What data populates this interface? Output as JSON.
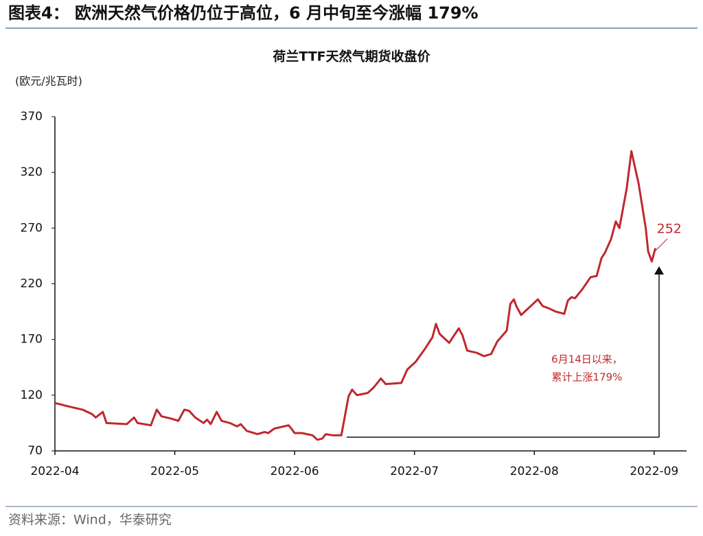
{
  "header": {
    "title": "图表4： 欧洲天然气价格仍位于高位，6 月中旬至今涨幅 179%"
  },
  "chart_data": {
    "type": "line",
    "title": "荷兰TTF天然气期货收盘价",
    "y_label": "(欧元/兆瓦时)",
    "color": "#c0272d",
    "x": [
      4.0,
      4.11,
      4.23,
      4.31,
      4.34,
      4.4,
      4.43,
      4.6,
      4.66,
      4.69,
      4.8,
      4.85,
      4.89,
      4.97,
      5.03,
      5.08,
      5.12,
      5.17,
      5.24,
      5.27,
      5.3,
      5.35,
      5.39,
      5.46,
      5.52,
      5.55,
      5.6,
      5.69,
      5.75,
      5.78,
      5.83,
      5.95,
      5.98,
      6.0,
      6.06,
      6.15,
      6.19,
      6.23,
      6.26,
      6.32,
      6.39,
      6.45,
      6.48,
      6.52,
      6.61,
      6.66,
      6.72,
      6.76,
      6.89,
      6.94,
      7.01,
      7.09,
      7.15,
      7.18,
      7.21,
      7.29,
      7.37,
      7.4,
      7.44,
      7.52,
      7.58,
      7.64,
      7.69,
      7.77,
      7.8,
      7.83,
      7.85,
      7.89,
      7.95,
      8.03,
      8.07,
      8.12,
      8.18,
      8.25,
      8.28,
      8.31,
      8.34,
      8.4,
      8.47,
      8.52,
      8.56,
      8.59,
      8.64,
      8.68,
      8.71,
      8.77,
      8.81,
      8.87,
      8.93,
      8.95,
      8.98,
      9.01
    ],
    "values": [
      113,
      110,
      107,
      103,
      100,
      105,
      95,
      94,
      100,
      95,
      93,
      107,
      101,
      99,
      97,
      107,
      106,
      100,
      95,
      98,
      94,
      105,
      97,
      95,
      92,
      94,
      88,
      85,
      87,
      86,
      90,
      93,
      89,
      86,
      86,
      84,
      80,
      81,
      85,
      84,
      84,
      119,
      125,
      120,
      122,
      127,
      135,
      130,
      131,
      143,
      150,
      162,
      172,
      184,
      175,
      167,
      180,
      174,
      160,
      158,
      155,
      157,
      168,
      178,
      202,
      206,
      200,
      192,
      198,
      206,
      200,
      198,
      195,
      193,
      205,
      208,
      207,
      215,
      226,
      227,
      243,
      248,
      260,
      276,
      270,
      305,
      339,
      310,
      270,
      249,
      240,
      252
    ],
    "xlim": [
      4,
      9.27
    ],
    "ylim": [
      70,
      370
    ],
    "xticks": [
      {
        "value": 4,
        "label": "2022-04"
      },
      {
        "value": 5,
        "label": "2022-05"
      },
      {
        "value": 6,
        "label": "2022-06"
      },
      {
        "value": 7,
        "label": "2022-07"
      },
      {
        "value": 8,
        "label": "2022-08"
      },
      {
        "value": 9,
        "label": "2022-09"
      }
    ],
    "yticks": [
      70,
      120,
      170,
      220,
      270,
      320,
      370
    ],
    "annotation": [
      "6月14日以来，",
      "累计上涨179%"
    ]
  },
  "source": "资料来源：Wind，华泰研究"
}
